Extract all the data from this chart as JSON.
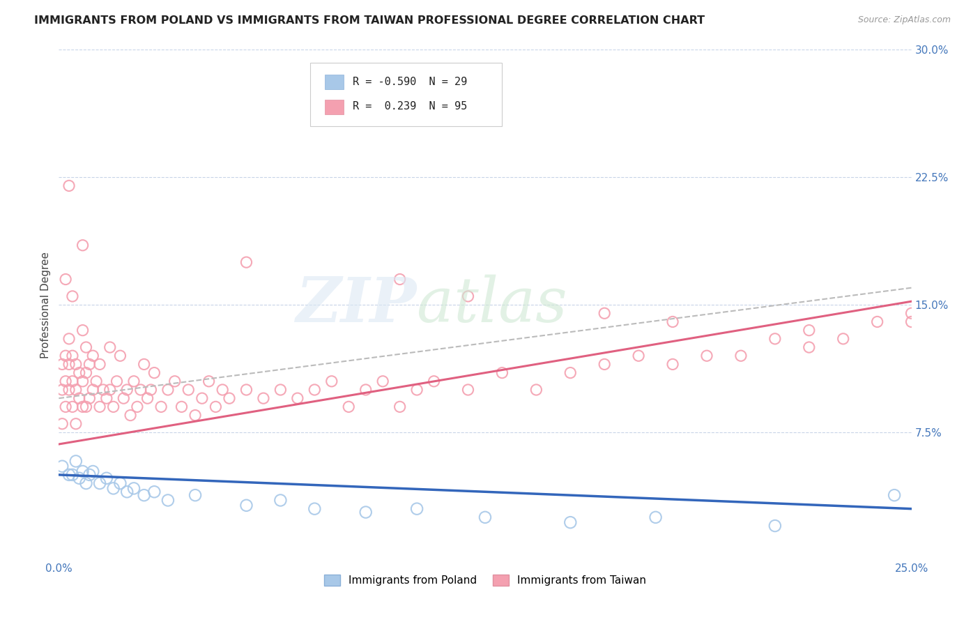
{
  "title": "IMMIGRANTS FROM POLAND VS IMMIGRANTS FROM TAIWAN PROFESSIONAL DEGREE CORRELATION CHART",
  "source": "Source: ZipAtlas.com",
  "ylabel": "Professional Degree",
  "xlim": [
    0.0,
    0.25
  ],
  "ylim": [
    0.0,
    0.3
  ],
  "poland_color": "#a8c8e8",
  "taiwan_color": "#f4a0b0",
  "poland_line_color": "#3366bb",
  "taiwan_line_color": "#e06080",
  "dashed_line_color": "#bbbbbb",
  "legend_R_poland": "-0.590",
  "legend_N_poland": "29",
  "legend_R_taiwan": "0.239",
  "legend_N_taiwan": "95",
  "background_color": "#ffffff",
  "grid_color": "#c8d4e8",
  "poland_scatter_x": [
    0.001,
    0.003,
    0.004,
    0.005,
    0.006,
    0.007,
    0.008,
    0.009,
    0.01,
    0.012,
    0.014,
    0.016,
    0.018,
    0.02,
    0.022,
    0.025,
    0.028,
    0.032,
    0.04,
    0.055,
    0.065,
    0.075,
    0.09,
    0.105,
    0.125,
    0.15,
    0.175,
    0.21,
    0.245
  ],
  "poland_scatter_y": [
    0.055,
    0.05,
    0.05,
    0.058,
    0.048,
    0.052,
    0.045,
    0.05,
    0.052,
    0.045,
    0.048,
    0.042,
    0.045,
    0.04,
    0.042,
    0.038,
    0.04,
    0.035,
    0.038,
    0.032,
    0.035,
    0.03,
    0.028,
    0.03,
    0.025,
    0.022,
    0.025,
    0.02,
    0.038
  ],
  "taiwan_scatter_x": [
    0.001,
    0.001,
    0.001,
    0.002,
    0.002,
    0.002,
    0.003,
    0.003,
    0.003,
    0.003,
    0.004,
    0.004,
    0.004,
    0.005,
    0.005,
    0.005,
    0.006,
    0.006,
    0.007,
    0.007,
    0.007,
    0.008,
    0.008,
    0.008,
    0.009,
    0.009,
    0.01,
    0.01,
    0.011,
    0.012,
    0.012,
    0.013,
    0.014,
    0.015,
    0.015,
    0.016,
    0.017,
    0.018,
    0.019,
    0.02,
    0.021,
    0.022,
    0.023,
    0.024,
    0.025,
    0.026,
    0.027,
    0.028,
    0.03,
    0.032,
    0.034,
    0.036,
    0.038,
    0.04,
    0.042,
    0.044,
    0.046,
    0.048,
    0.05,
    0.055,
    0.06,
    0.065,
    0.07,
    0.075,
    0.08,
    0.085,
    0.09,
    0.095,
    0.1,
    0.105,
    0.11,
    0.12,
    0.13,
    0.14,
    0.15,
    0.16,
    0.17,
    0.18,
    0.19,
    0.2,
    0.21,
    0.22,
    0.23,
    0.24,
    0.25,
    0.002,
    0.004,
    0.007,
    0.055,
    0.1,
    0.12,
    0.16,
    0.18,
    0.22,
    0.25
  ],
  "taiwan_scatter_y": [
    0.08,
    0.1,
    0.115,
    0.09,
    0.105,
    0.12,
    0.1,
    0.115,
    0.13,
    0.22,
    0.09,
    0.105,
    0.12,
    0.1,
    0.115,
    0.08,
    0.095,
    0.11,
    0.09,
    0.105,
    0.135,
    0.09,
    0.11,
    0.125,
    0.095,
    0.115,
    0.1,
    0.12,
    0.105,
    0.09,
    0.115,
    0.1,
    0.095,
    0.1,
    0.125,
    0.09,
    0.105,
    0.12,
    0.095,
    0.1,
    0.085,
    0.105,
    0.09,
    0.1,
    0.115,
    0.095,
    0.1,
    0.11,
    0.09,
    0.1,
    0.105,
    0.09,
    0.1,
    0.085,
    0.095,
    0.105,
    0.09,
    0.1,
    0.095,
    0.1,
    0.095,
    0.1,
    0.095,
    0.1,
    0.105,
    0.09,
    0.1,
    0.105,
    0.09,
    0.1,
    0.105,
    0.1,
    0.11,
    0.1,
    0.11,
    0.115,
    0.12,
    0.115,
    0.12,
    0.12,
    0.13,
    0.125,
    0.13,
    0.14,
    0.14,
    0.165,
    0.155,
    0.185,
    0.175,
    0.165,
    0.155,
    0.145,
    0.14,
    0.135,
    0.145
  ],
  "taiwan_line_start_y": 0.068,
  "taiwan_line_end_y": 0.152,
  "poland_line_start_y": 0.05,
  "poland_line_end_y": 0.03,
  "dashed_line_start_y": 0.095,
  "dashed_line_end_y": 0.16
}
